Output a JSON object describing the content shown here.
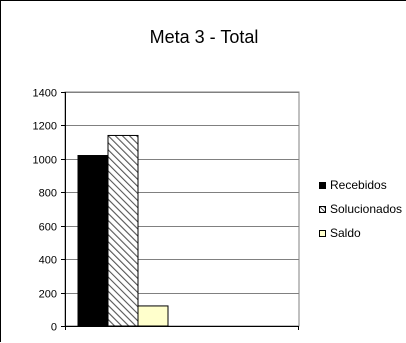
{
  "chart_data": {
    "type": "bar",
    "title": "Meta 3 - Total",
    "categories": [
      ""
    ],
    "series": [
      {
        "name": "Recebidos",
        "values": [
          1020
        ],
        "color": "#000000",
        "pattern": "solid"
      },
      {
        "name": "Solucionados",
        "values": [
          1140
        ],
        "color": "#8c8c8c",
        "pattern": "diagonal-hatch"
      },
      {
        "name": "Saldo",
        "values": [
          120
        ],
        "color": "#ffffcc",
        "pattern": "solid"
      }
    ],
    "yticks": [
      "0",
      "200",
      "400",
      "600",
      "800",
      "1000",
      "1200",
      "1400"
    ],
    "ylim": [
      0,
      1400
    ],
    "grid": true,
    "legend_position": "right"
  }
}
